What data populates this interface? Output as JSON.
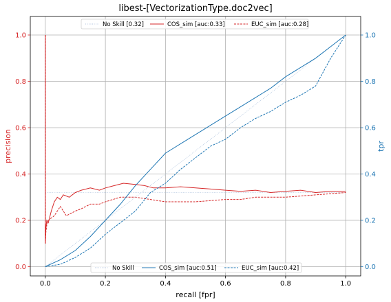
{
  "chart_data": {
    "type": "line",
    "title": "libest-[VectorizationType.doc2vec]",
    "xlabel": "recall [fpr]",
    "ylabel_left": "precision",
    "ylabel_right": "tpr",
    "xlim": [
      -0.05,
      1.05
    ],
    "ylim_left": [
      -0.04,
      1.08
    ],
    "ylim_right": [
      -0.04,
      1.08
    ],
    "x_ticks": [
      "0.0",
      "0.2",
      "0.4",
      "0.6",
      "0.8",
      "1.0"
    ],
    "y_ticks_left": [
      "0.0",
      "0.2",
      "0.4",
      "0.6",
      "0.8",
      "1.0"
    ],
    "y_ticks_right": [
      "0.0",
      "0.2",
      "0.4",
      "0.6",
      "0.8",
      "1.0"
    ],
    "grid": true,
    "colors": {
      "precision": "#d62728",
      "roc": "#1f77b4",
      "noskill": "#b0c4de"
    },
    "legend_top": {
      "placement": "top-center",
      "entries": [
        {
          "label": "No Skill [0.32]",
          "style": "dotted",
          "color": "#b0c4de"
        },
        {
          "label": "COS_sim [auc:0.33]",
          "style": "solid",
          "color": "#d62728"
        },
        {
          "label": "EUC_sim [auc:0.28]",
          "style": "dashed",
          "color": "#d62728"
        }
      ]
    },
    "legend_bottom": {
      "placement": "bottom-center",
      "entries": [
        {
          "label": "No Skill",
          "style": "dotted",
          "color": "#b0c4de"
        },
        {
          "label": "COS_sim [auc:0.51]",
          "style": "solid",
          "color": "#1f77b4"
        },
        {
          "label": "EUC_sim [auc:0.42]",
          "style": "dashed",
          "color": "#1f77b4"
        }
      ]
    },
    "series": [
      {
        "axis": "left",
        "kind": "noskill",
        "style": "dotted",
        "color": "#b0c4de",
        "x": [
          0,
          1
        ],
        "y": [
          0.32,
          0.32
        ]
      },
      {
        "axis": "left",
        "kind": "pr",
        "style": "solid",
        "color": "#d62728",
        "x": [
          0,
          0,
          0.002,
          0.005,
          0.01,
          0.02,
          0.03,
          0.04,
          0.05,
          0.06,
          0.08,
          0.1,
          0.12,
          0.15,
          0.18,
          0.2,
          0.23,
          0.26,
          0.3,
          0.33,
          0.36,
          0.4,
          0.45,
          0.5,
          0.55,
          0.6,
          0.65,
          0.7,
          0.75,
          0.8,
          0.85,
          0.9,
          0.95,
          1.0
        ],
        "y": [
          1.0,
          0.1,
          0.17,
          0.2,
          0.19,
          0.24,
          0.28,
          0.3,
          0.29,
          0.31,
          0.3,
          0.32,
          0.33,
          0.34,
          0.33,
          0.34,
          0.35,
          0.36,
          0.355,
          0.35,
          0.34,
          0.34,
          0.345,
          0.34,
          0.335,
          0.33,
          0.325,
          0.33,
          0.32,
          0.325,
          0.33,
          0.32,
          0.325,
          0.325
        ]
      },
      {
        "axis": "left",
        "kind": "pr",
        "style": "dashed",
        "color": "#d62728",
        "x": [
          0,
          0,
          0.002,
          0.005,
          0.01,
          0.02,
          0.03,
          0.04,
          0.05,
          0.07,
          0.1,
          0.12,
          0.15,
          0.18,
          0.2,
          0.25,
          0.3,
          0.35,
          0.4,
          0.45,
          0.5,
          0.55,
          0.6,
          0.65,
          0.7,
          0.75,
          0.8,
          0.85,
          0.9,
          0.95,
          1.0
        ],
        "y": [
          1.0,
          0.1,
          0.15,
          0.18,
          0.2,
          0.21,
          0.22,
          0.24,
          0.26,
          0.22,
          0.24,
          0.25,
          0.27,
          0.27,
          0.28,
          0.3,
          0.3,
          0.29,
          0.28,
          0.28,
          0.28,
          0.285,
          0.29,
          0.29,
          0.3,
          0.3,
          0.3,
          0.305,
          0.31,
          0.315,
          0.32
        ]
      },
      {
        "axis": "right",
        "kind": "roc",
        "style": "dotted",
        "color": "#b0c4de",
        "x": [
          0,
          1
        ],
        "y": [
          0,
          1
        ]
      },
      {
        "axis": "right",
        "kind": "roc",
        "style": "solid",
        "color": "#1f77b4",
        "x": [
          0,
          0.05,
          0.1,
          0.15,
          0.2,
          0.25,
          0.3,
          0.35,
          0.4,
          0.45,
          0.5,
          0.55,
          0.6,
          0.65,
          0.7,
          0.75,
          0.8,
          0.85,
          0.9,
          0.95,
          1.0
        ],
        "y": [
          0,
          0.03,
          0.07,
          0.13,
          0.2,
          0.27,
          0.35,
          0.42,
          0.49,
          0.53,
          0.57,
          0.61,
          0.65,
          0.69,
          0.73,
          0.77,
          0.82,
          0.86,
          0.9,
          0.95,
          1.0
        ]
      },
      {
        "axis": "right",
        "kind": "roc",
        "style": "dashed",
        "color": "#1f77b4",
        "x": [
          0,
          0.05,
          0.1,
          0.15,
          0.2,
          0.25,
          0.3,
          0.35,
          0.4,
          0.45,
          0.5,
          0.55,
          0.6,
          0.65,
          0.7,
          0.75,
          0.8,
          0.85,
          0.9,
          0.95,
          1.0
        ],
        "y": [
          0,
          0.01,
          0.04,
          0.08,
          0.14,
          0.19,
          0.24,
          0.32,
          0.36,
          0.42,
          0.47,
          0.52,
          0.55,
          0.6,
          0.64,
          0.67,
          0.71,
          0.74,
          0.78,
          0.9,
          1.0
        ]
      }
    ]
  }
}
